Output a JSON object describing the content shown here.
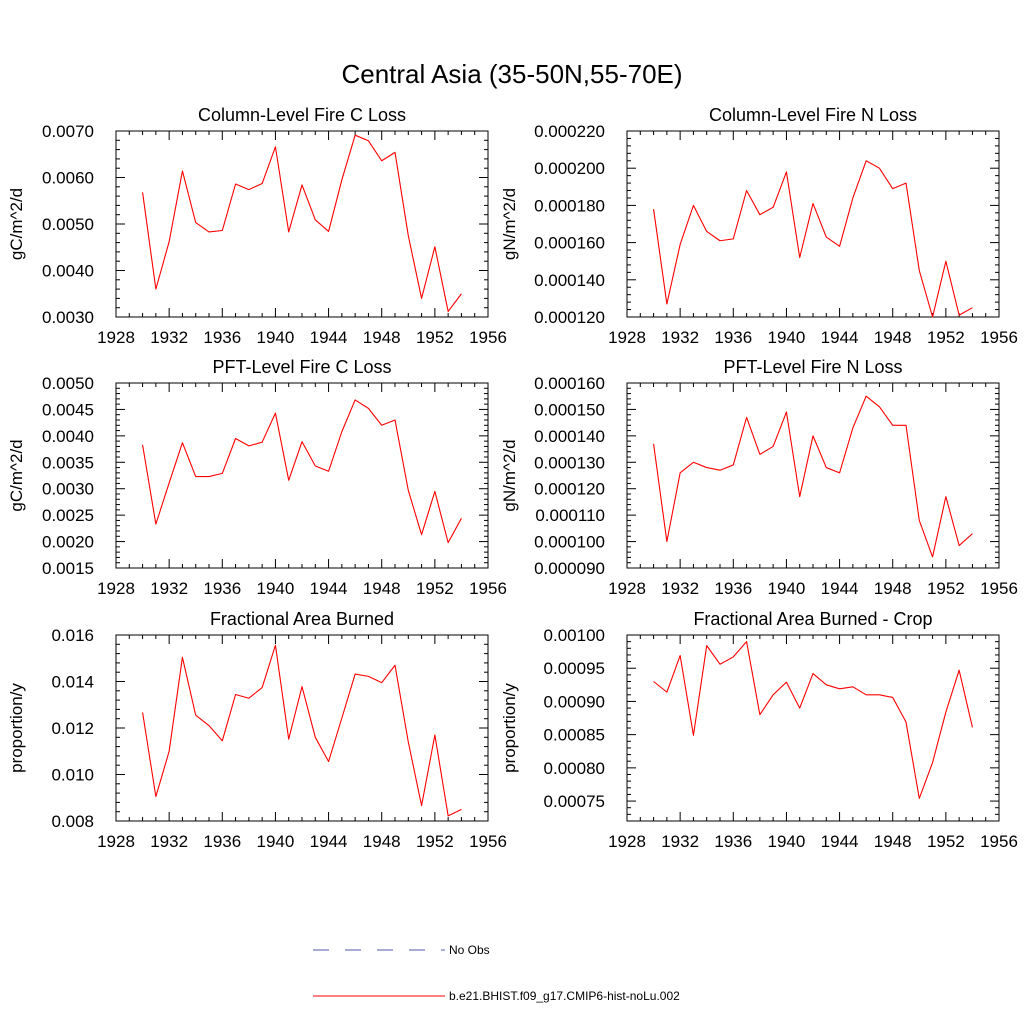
{
  "figure": {
    "title": "Central Asia (35-50N,55-70E)"
  },
  "chart_data": [
    {
      "type": "line",
      "title": "Column-Level Fire C Loss",
      "xlabel": "",
      "ylabel": "gC/m^2/d",
      "xlim": [
        1928,
        1956
      ],
      "ylim": [
        0.003,
        0.007
      ],
      "xticks": [
        "1928",
        "1932",
        "1936",
        "1940",
        "1944",
        "1948",
        "1952",
        "1956"
      ],
      "yticks": [
        "0.0030",
        "0.0040",
        "0.0050",
        "0.0060",
        "0.0070"
      ],
      "x": [
        1930,
        1931,
        1932,
        1933,
        1934,
        1935,
        1936,
        1937,
        1938,
        1939,
        1940,
        1941,
        1942,
        1943,
        1944,
        1945,
        1946,
        1947,
        1948,
        1949,
        1950,
        1951,
        1952,
        1953,
        1954
      ],
      "series": [
        {
          "name": "b.e21.BHIST.f09_g17.CMIP6-hist-noLu.002",
          "color": "#ff0000",
          "values": [
            0.00568,
            0.0036,
            0.00462,
            0.00614,
            0.00503,
            0.00483,
            0.00486,
            0.00586,
            0.00574,
            0.00587,
            0.00666,
            0.00483,
            0.00584,
            0.00509,
            0.00484,
            0.00595,
            0.00691,
            0.00679,
            0.00636,
            0.00654,
            0.00475,
            0.0034,
            0.00451,
            0.00312,
            0.0035
          ]
        }
      ]
    },
    {
      "type": "line",
      "title": "Column-Level Fire N Loss",
      "xlabel": "",
      "ylabel": "gN/m^2/d",
      "xlim": [
        1928,
        1956
      ],
      "ylim": [
        0.00012,
        0.00022
      ],
      "xticks": [
        "1928",
        "1932",
        "1936",
        "1940",
        "1944",
        "1948",
        "1952",
        "1956"
      ],
      "yticks": [
        "0.000120",
        "0.000140",
        "0.000160",
        "0.000180",
        "0.000200",
        "0.000220"
      ],
      "x": [
        1930,
        1931,
        1932,
        1933,
        1934,
        1935,
        1936,
        1937,
        1938,
        1939,
        1940,
        1941,
        1942,
        1943,
        1944,
        1945,
        1946,
        1947,
        1948,
        1949,
        1950,
        1951,
        1952,
        1953,
        1954
      ],
      "series": [
        {
          "name": "b.e21.BHIST.f09_g17.CMIP6-hist-noLu.002",
          "color": "#ff0000",
          "values": [
            0.000178,
            0.000127,
            0.000159,
            0.00018,
            0.000166,
            0.000161,
            0.000162,
            0.000188,
            0.000175,
            0.000179,
            0.000198,
            0.000152,
            0.000181,
            0.000163,
            0.000158,
            0.000184,
            0.000204,
            0.0002,
            0.000189,
            0.000192,
            0.000145,
            0.00012,
            0.00015,
            0.000121,
            0.000125
          ]
        }
      ]
    },
    {
      "type": "line",
      "title": "PFT-Level Fire C Loss",
      "xlabel": "",
      "ylabel": "gC/m^2/d",
      "xlim": [
        1928,
        1956
      ],
      "ylim": [
        0.0015,
        0.005
      ],
      "xticks": [
        "1928",
        "1932",
        "1936",
        "1940",
        "1944",
        "1948",
        "1952",
        "1956"
      ],
      "yticks": [
        "0.0015",
        "0.0020",
        "0.0025",
        "0.0030",
        "0.0035",
        "0.0040",
        "0.0045",
        "0.0050"
      ],
      "x": [
        1930,
        1931,
        1932,
        1933,
        1934,
        1935,
        1936,
        1937,
        1938,
        1939,
        1940,
        1941,
        1942,
        1943,
        1944,
        1945,
        1946,
        1947,
        1948,
        1949,
        1950,
        1951,
        1952,
        1953,
        1954
      ],
      "series": [
        {
          "name": "b.e21.BHIST.f09_g17.CMIP6-hist-noLu.002",
          "color": "#ff0000",
          "values": [
            0.00383,
            0.00233,
            0.00311,
            0.00387,
            0.00323,
            0.00323,
            0.00329,
            0.00395,
            0.00381,
            0.00388,
            0.00443,
            0.00316,
            0.00389,
            0.00343,
            0.00333,
            0.00408,
            0.00468,
            0.00452,
            0.0042,
            0.0043,
            0.00297,
            0.00213,
            0.00295,
            0.00198,
            0.00244
          ]
        }
      ]
    },
    {
      "type": "line",
      "title": "PFT-Level Fire N Loss",
      "xlabel": "",
      "ylabel": "gN/m^2/d",
      "xlim": [
        1928,
        1956
      ],
      "ylim": [
        9e-05,
        0.00016
      ],
      "xticks": [
        "1928",
        "1932",
        "1936",
        "1940",
        "1944",
        "1948",
        "1952",
        "1956"
      ],
      "yticks": [
        "0.000090",
        "0.000100",
        "0.000110",
        "0.000120",
        "0.000130",
        "0.000140",
        "0.000150",
        "0.000160"
      ],
      "x": [
        1930,
        1931,
        1932,
        1933,
        1934,
        1935,
        1936,
        1937,
        1938,
        1939,
        1940,
        1941,
        1942,
        1943,
        1944,
        1945,
        1946,
        1947,
        1948,
        1949,
        1950,
        1951,
        1952,
        1953,
        1954
      ],
      "series": [
        {
          "name": "b.e21.BHIST.f09_g17.CMIP6-hist-noLu.002",
          "color": "#ff0000",
          "values": [
            0.000137,
            0.0001,
            0.000126,
            0.00013,
            0.000128,
            0.000127,
            0.000129,
            0.000147,
            0.000133,
            0.000136,
            0.000149,
            0.000117,
            0.00014,
            0.000128,
            0.000126,
            0.000143,
            0.000155,
            0.000151,
            0.000144,
            0.000144,
            0.000108,
            9.42e-05,
            0.000117,
            9.85e-05,
            0.000103
          ]
        }
      ]
    },
    {
      "type": "line",
      "title": "Fractional Area Burned",
      "xlabel": "",
      "ylabel": "proportion/y",
      "xlim": [
        1928,
        1956
      ],
      "ylim": [
        0.008,
        0.016
      ],
      "xticks": [
        "1928",
        "1932",
        "1936",
        "1940",
        "1944",
        "1948",
        "1952",
        "1956"
      ],
      "yticks": [
        "0.008",
        "0.010",
        "0.012",
        "0.014",
        "0.016"
      ],
      "x": [
        1930,
        1931,
        1932,
        1933,
        1934,
        1935,
        1936,
        1937,
        1938,
        1939,
        1940,
        1941,
        1942,
        1943,
        1944,
        1945,
        1946,
        1947,
        1948,
        1949,
        1950,
        1951,
        1952,
        1953,
        1954
      ],
      "series": [
        {
          "name": "b.e21.BHIST.f09_g17.CMIP6-hist-noLu.002",
          "color": "#ff0000",
          "values": [
            0.01267,
            0.00905,
            0.011,
            0.01504,
            0.01255,
            0.0121,
            0.01145,
            0.01344,
            0.01328,
            0.01374,
            0.01556,
            0.01152,
            0.01378,
            0.0116,
            0.01056,
            0.01243,
            0.01432,
            0.01422,
            0.01395,
            0.0147,
            0.0114,
            0.00866,
            0.0117,
            0.00822,
            0.0085
          ]
        }
      ]
    },
    {
      "type": "line",
      "title": "Fractional Area Burned - Crop",
      "xlabel": "",
      "ylabel": "proportion/y",
      "xlim": [
        1928,
        1956
      ],
      "ylim": [
        0.00072,
        0.001
      ],
      "xticks": [
        "1928",
        "1932",
        "1936",
        "1940",
        "1944",
        "1948",
        "1952",
        "1956"
      ],
      "yticks": [
        "0.00075",
        "0.00080",
        "0.00085",
        "0.00090",
        "0.00095",
        "0.00100"
      ],
      "x": [
        1930,
        1931,
        1932,
        1933,
        1934,
        1935,
        1936,
        1937,
        1938,
        1939,
        1940,
        1941,
        1942,
        1943,
        1944,
        1945,
        1946,
        1947,
        1948,
        1949,
        1950,
        1951,
        1952,
        1953,
        1954
      ],
      "series": [
        {
          "name": "b.e21.BHIST.f09_g17.CMIP6-hist-noLu.002",
          "color": "#ff0000",
          "values": [
            0.00093,
            0.000914,
            0.000969,
            0.000849,
            0.000984,
            0.000956,
            0.000967,
            0.00099,
            0.00088,
            0.00091,
            0.000929,
            0.00089,
            0.000942,
            0.000925,
            0.000919,
            0.000922,
            0.00091,
            0.00091,
            0.000906,
            0.000869,
            0.000754,
            0.000808,
            0.000884,
            0.000947,
            0.000861
          ]
        }
      ]
    }
  ],
  "legend": {
    "items": [
      {
        "label": "No Obs",
        "color": "#4f5aa8",
        "style": "dashed"
      },
      {
        "label": "b.e21.BHIST.f09_g17.CMIP6-hist-noLu.002",
        "color": "#ff0000",
        "style": "solid"
      }
    ]
  }
}
